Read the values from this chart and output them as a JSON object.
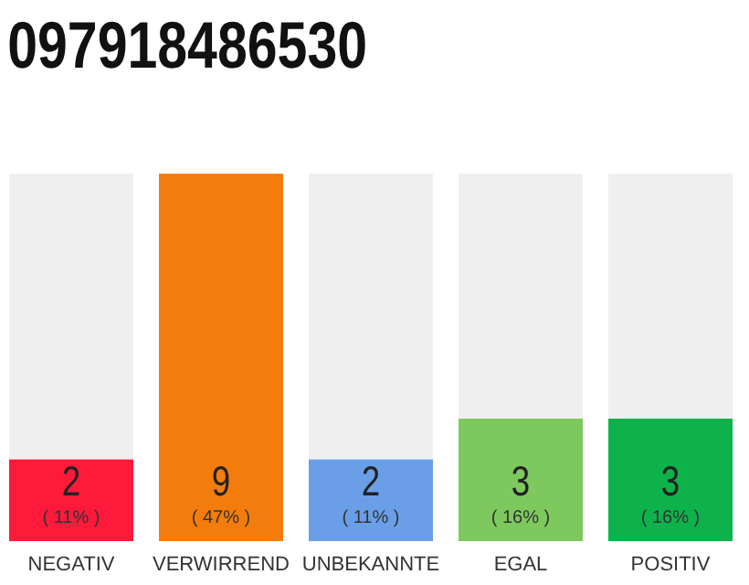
{
  "chart_data": {
    "type": "bar",
    "title": "097918486530",
    "categories": [
      "NEGATIV",
      "VERWIRREND",
      "UNBEKANNTE",
      "EGAL",
      "POSITIV"
    ],
    "values": [
      2,
      9,
      2,
      3,
      3
    ],
    "colors": [
      "#ff1a3c",
      "#f47c0c",
      "#6a9fe8",
      "#7dc95e",
      "#0db34a"
    ],
    "data_labels": true,
    "annotations": [
      "( 11% )",
      "( 47% )",
      "( 11% )",
      "( 16% )",
      "( 16% )"
    ]
  }
}
